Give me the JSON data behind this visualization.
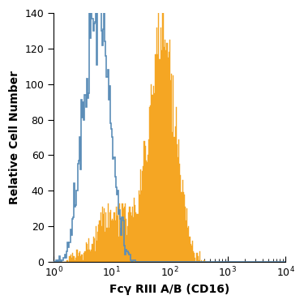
{
  "title": "",
  "xlabel": "Fcγ RIII A/B (CD16)",
  "ylabel": "Relative Cell Number",
  "xlim": [
    1,
    10000
  ],
  "ylim": [
    0,
    140
  ],
  "yticks": [
    0,
    20,
    40,
    60,
    80,
    100,
    120,
    140
  ],
  "filled_color": "#F5A623",
  "open_edge_color": "#5B8DB8",
  "background_color": "#FFFFFF",
  "figsize": [
    3.75,
    3.75
  ],
  "dpi": 100,
  "n_bins": 256
}
